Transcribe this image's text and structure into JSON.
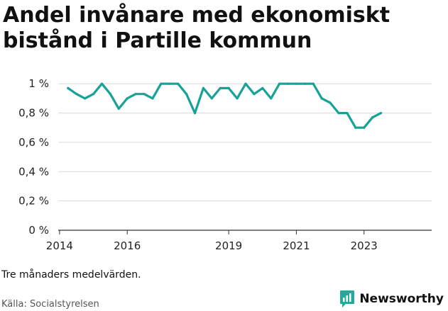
{
  "title": "Andel invånare med ekonomiskt bistånd i Partille kommun",
  "note": "Tre månaders medelvärden.",
  "source": "Källa: Socialstyrelsen",
  "brand": {
    "name": "Newsworthy",
    "color": "#27a89b",
    "icon": "newsworthy-logo-icon"
  },
  "chart_data": {
    "type": "line",
    "title": "Andel invånare med ekonomiskt bistånd i Partille kommun",
    "xlabel": "",
    "ylabel": "",
    "line_color": "#17a297",
    "grid": true,
    "y_ticks": [
      {
        "value": 0,
        "label": "0 %"
      },
      {
        "value": 0.2,
        "label": "0,2 %"
      },
      {
        "value": 0.4,
        "label": "0,4 %"
      },
      {
        "value": 0.6,
        "label": "0,6 %"
      },
      {
        "value": 0.8,
        "label": "0,8 %"
      },
      {
        "value": 1.0,
        "label": "1 %"
      }
    ],
    "x_ticks": [
      {
        "value": 2014.0,
        "label": "2014"
      },
      {
        "value": 2016.0,
        "label": "2016"
      },
      {
        "value": 2019.0,
        "label": "2019"
      },
      {
        "value": 2021.0,
        "label": "2021"
      },
      {
        "value": 2023.0,
        "label": "2023"
      }
    ],
    "xlim": [
      2013.96,
      2025.0
    ],
    "ylim": [
      0,
      1.03
    ],
    "x": [
      2014.25,
      2014.5,
      2014.75,
      2015.0,
      2015.25,
      2015.5,
      2015.75,
      2016.0,
      2016.25,
      2016.5,
      2016.75,
      2017.0,
      2017.25,
      2017.5,
      2017.75,
      2018.0,
      2018.25,
      2018.5,
      2018.75,
      2019.0,
      2019.25,
      2019.5,
      2019.75,
      2020.0,
      2020.25,
      2020.5,
      2020.75,
      2021.0,
      2021.25,
      2021.5,
      2021.75,
      2022.0,
      2022.25,
      2022.5,
      2022.75,
      2023.0,
      2023.25,
      2023.5
    ],
    "values": [
      0.97,
      0.93,
      0.9,
      0.93,
      1.0,
      0.93,
      0.83,
      0.9,
      0.93,
      0.93,
      0.9,
      1.0,
      1.0,
      1.0,
      0.93,
      0.8,
      0.97,
      0.9,
      0.97,
      0.97,
      0.9,
      1.0,
      0.93,
      0.97,
      0.9,
      1.0,
      1.0,
      1.0,
      1.0,
      1.0,
      0.9,
      0.87,
      0.8,
      0.8,
      0.7,
      0.7,
      0.77,
      0.8
    ]
  }
}
